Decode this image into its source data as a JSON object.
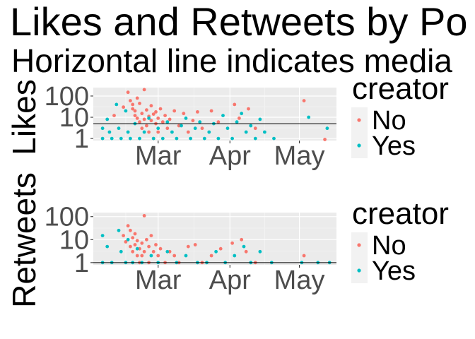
{
  "title": "Likes and Retweets by Po",
  "subtitle": "Horizontal line indicates media",
  "colors": {
    "No": "#F8766D",
    "Yes": "#00BFC4",
    "panel": "#EBEBEB",
    "grid_major": "#FFFFFF",
    "legend_key": "#F2F2F2",
    "hline": "#000000"
  },
  "chart_data": [
    {
      "type": "scatter",
      "ylabel": "Likes",
      "yscale": "log10",
      "ylim": [
        0.8,
        250
      ],
      "xlim": [
        "2018-02-01",
        "2018-05-17"
      ],
      "x_ticks": [
        {
          "date": "2018-03-01",
          "label": "Mar"
        },
        {
          "date": "2018-04-01",
          "label": "Apr"
        },
        {
          "date": "2018-05-01",
          "label": "May"
        }
      ],
      "y_ticks": [
        {
          "value": 1,
          "label": "1"
        },
        {
          "value": 10,
          "label": "10"
        },
        {
          "value": 100,
          "label": "100"
        }
      ],
      "median_line": 5,
      "legend": {
        "title": "creator",
        "entries": [
          "No",
          "Yes"
        ]
      },
      "series": [
        {
          "name": "No",
          "points": [
            [
              "2018-02-10",
              12
            ],
            [
              "2018-02-14",
              30
            ],
            [
              "2018-02-16",
              150
            ],
            [
              "2018-02-17",
              60
            ],
            [
              "2018-02-18",
              40
            ],
            [
              "2018-02-18",
              25
            ],
            [
              "2018-02-19",
              20
            ],
            [
              "2018-02-19",
              12
            ],
            [
              "2018-02-20",
              80
            ],
            [
              "2018-02-20",
              9
            ],
            [
              "2018-02-21",
              6
            ],
            [
              "2018-02-21",
              45
            ],
            [
              "2018-02-22",
              15
            ],
            [
              "2018-02-22",
              3
            ],
            [
              "2018-02-23",
              200
            ],
            [
              "2018-02-23",
              8
            ],
            [
              "2018-02-24",
              22
            ],
            [
              "2018-02-24",
              4
            ],
            [
              "2018-02-25",
              11
            ],
            [
              "2018-02-25",
              2
            ],
            [
              "2018-02-26",
              35
            ],
            [
              "2018-02-26",
              7
            ],
            [
              "2018-02-27",
              14
            ],
            [
              "2018-02-27",
              1
            ],
            [
              "2018-02-28",
              5
            ],
            [
              "2018-02-28",
              18
            ],
            [
              "2018-03-01",
              9
            ],
            [
              "2018-03-01",
              2
            ],
            [
              "2018-03-02",
              25
            ],
            [
              "2018-03-03",
              6
            ],
            [
              "2018-03-04",
              12
            ],
            [
              "2018-03-05",
              3
            ],
            [
              "2018-03-06",
              8
            ],
            [
              "2018-03-08",
              20
            ],
            [
              "2018-03-10",
              4
            ],
            [
              "2018-03-12",
              15
            ],
            [
              "2018-03-14",
              2
            ],
            [
              "2018-03-16",
              7
            ],
            [
              "2018-03-18",
              18
            ],
            [
              "2018-03-20",
              3
            ],
            [
              "2018-03-24",
              20
            ],
            [
              "2018-03-27",
              6
            ],
            [
              "2018-04-03",
              40
            ],
            [
              "2018-04-05",
              9
            ],
            [
              "2018-04-09",
              25
            ],
            [
              "2018-04-12",
              3
            ],
            [
              "2018-05-03",
              60
            ],
            [
              "2018-05-12",
              0.9
            ]
          ]
        },
        {
          "name": "Yes",
          "points": [
            [
              "2018-02-05",
              3
            ],
            [
              "2018-02-05",
              1
            ],
            [
              "2018-02-07",
              8
            ],
            [
              "2018-02-08",
              2
            ],
            [
              "2018-02-09",
              1
            ],
            [
              "2018-02-11",
              40
            ],
            [
              "2018-02-12",
              3
            ],
            [
              "2018-02-13",
              1
            ],
            [
              "2018-02-15",
              20
            ],
            [
              "2018-02-16",
              2
            ],
            [
              "2018-02-17",
              1
            ],
            [
              "2018-02-19",
              5
            ],
            [
              "2018-02-21",
              1
            ],
            [
              "2018-02-23",
              2
            ],
            [
              "2018-02-25",
              9
            ],
            [
              "2018-02-27",
              1
            ],
            [
              "2018-03-01",
              3
            ],
            [
              "2018-03-03",
              1
            ],
            [
              "2018-03-05",
              6
            ],
            [
              "2018-03-07",
              2
            ],
            [
              "2018-03-09",
              1
            ],
            [
              "2018-03-11",
              4
            ],
            [
              "2018-03-13",
              9
            ],
            [
              "2018-03-15",
              1
            ],
            [
              "2018-03-17",
              3
            ],
            [
              "2018-03-19",
              6
            ],
            [
              "2018-03-21",
              1
            ],
            [
              "2018-03-23",
              2
            ],
            [
              "2018-03-25",
              5
            ],
            [
              "2018-03-27",
              1
            ],
            [
              "2018-03-29",
              12
            ],
            [
              "2018-03-31",
              3
            ],
            [
              "2018-04-02",
              1
            ],
            [
              "2018-04-04",
              6
            ],
            [
              "2018-04-06",
              15
            ],
            [
              "2018-04-08",
              2
            ],
            [
              "2018-04-10",
              4
            ],
            [
              "2018-04-12",
              1
            ],
            [
              "2018-04-14",
              8
            ],
            [
              "2018-04-16",
              2
            ],
            [
              "2018-04-20",
              1
            ],
            [
              "2018-05-05",
              10
            ],
            [
              "2018-05-13",
              3
            ]
          ]
        }
      ]
    },
    {
      "type": "scatter",
      "ylabel": "Retweets",
      "yscale": "log10",
      "ylim": [
        0.8,
        150
      ],
      "xlim": [
        "2018-02-01",
        "2018-05-17"
      ],
      "x_ticks": [
        {
          "date": "2018-03-01",
          "label": "Mar"
        },
        {
          "date": "2018-04-01",
          "label": "Apr"
        },
        {
          "date": "2018-05-01",
          "label": "May"
        }
      ],
      "y_ticks": [
        {
          "value": 1,
          "label": "1"
        },
        {
          "value": 10,
          "label": "10"
        },
        {
          "value": 100,
          "label": "100"
        }
      ],
      "median_line": 1,
      "legend": {
        "title": "creator",
        "entries": [
          "No",
          "Yes"
        ]
      },
      "series": [
        {
          "name": "No",
          "points": [
            [
              "2018-02-14",
              15
            ],
            [
              "2018-02-15",
              8
            ],
            [
              "2018-02-16",
              40
            ],
            [
              "2018-02-17",
              25
            ],
            [
              "2018-02-17",
              5
            ],
            [
              "2018-02-18",
              12
            ],
            [
              "2018-02-18",
              3
            ],
            [
              "2018-02-19",
              18
            ],
            [
              "2018-02-19",
              6
            ],
            [
              "2018-02-20",
              9
            ],
            [
              "2018-02-20",
              2
            ],
            [
              "2018-02-21",
              4
            ],
            [
              "2018-02-21",
              1
            ],
            [
              "2018-02-22",
              7
            ],
            [
              "2018-02-22",
              2
            ],
            [
              "2018-02-23",
              110
            ],
            [
              "2018-02-23",
              3
            ],
            [
              "2018-02-24",
              10
            ],
            [
              "2018-02-25",
              5
            ],
            [
              "2018-02-25",
              1
            ],
            [
              "2018-02-26",
              15
            ],
            [
              "2018-02-27",
              3
            ],
            [
              "2018-02-28",
              6
            ],
            [
              "2018-03-01",
              2
            ],
            [
              "2018-03-02",
              4
            ],
            [
              "2018-03-04",
              1
            ],
            [
              "2018-03-06",
              3
            ],
            [
              "2018-03-08",
              2
            ],
            [
              "2018-03-10",
              1
            ],
            [
              "2018-03-14",
              5
            ],
            [
              "2018-03-17",
              6
            ],
            [
              "2018-03-20",
              1
            ],
            [
              "2018-03-24",
              2
            ],
            [
              "2018-03-28",
              4
            ],
            [
              "2018-04-02",
              7
            ],
            [
              "2018-04-06",
              10
            ],
            [
              "2018-04-08",
              3
            ],
            [
              "2018-04-12",
              1
            ],
            [
              "2018-05-03",
              2
            ]
          ]
        },
        {
          "name": "Yes",
          "points": [
            [
              "2018-02-05",
              15
            ],
            [
              "2018-02-05",
              1
            ],
            [
              "2018-02-07",
              5
            ],
            [
              "2018-02-09",
              1
            ],
            [
              "2018-02-12",
              25
            ],
            [
              "2018-02-13",
              3
            ],
            [
              "2018-02-15",
              1
            ],
            [
              "2018-02-16",
              10
            ],
            [
              "2018-02-18",
              1
            ],
            [
              "2018-02-20",
              4
            ],
            [
              "2018-02-22",
              1
            ],
            [
              "2018-02-26",
              2
            ],
            [
              "2018-03-01",
              1
            ],
            [
              "2018-03-05",
              3
            ],
            [
              "2018-03-09",
              1
            ],
            [
              "2018-03-13",
              2
            ],
            [
              "2018-03-18",
              1
            ],
            [
              "2018-03-22",
              1
            ],
            [
              "2018-03-26",
              3
            ],
            [
              "2018-03-30",
              1
            ],
            [
              "2018-04-03",
              2
            ],
            [
              "2018-04-07",
              5
            ],
            [
              "2018-04-10",
              1
            ],
            [
              "2018-04-14",
              3
            ],
            [
              "2018-04-19",
              1
            ],
            [
              "2018-05-02",
              1
            ],
            [
              "2018-05-09",
              1
            ],
            [
              "2018-05-14",
              1
            ]
          ]
        }
      ]
    }
  ]
}
